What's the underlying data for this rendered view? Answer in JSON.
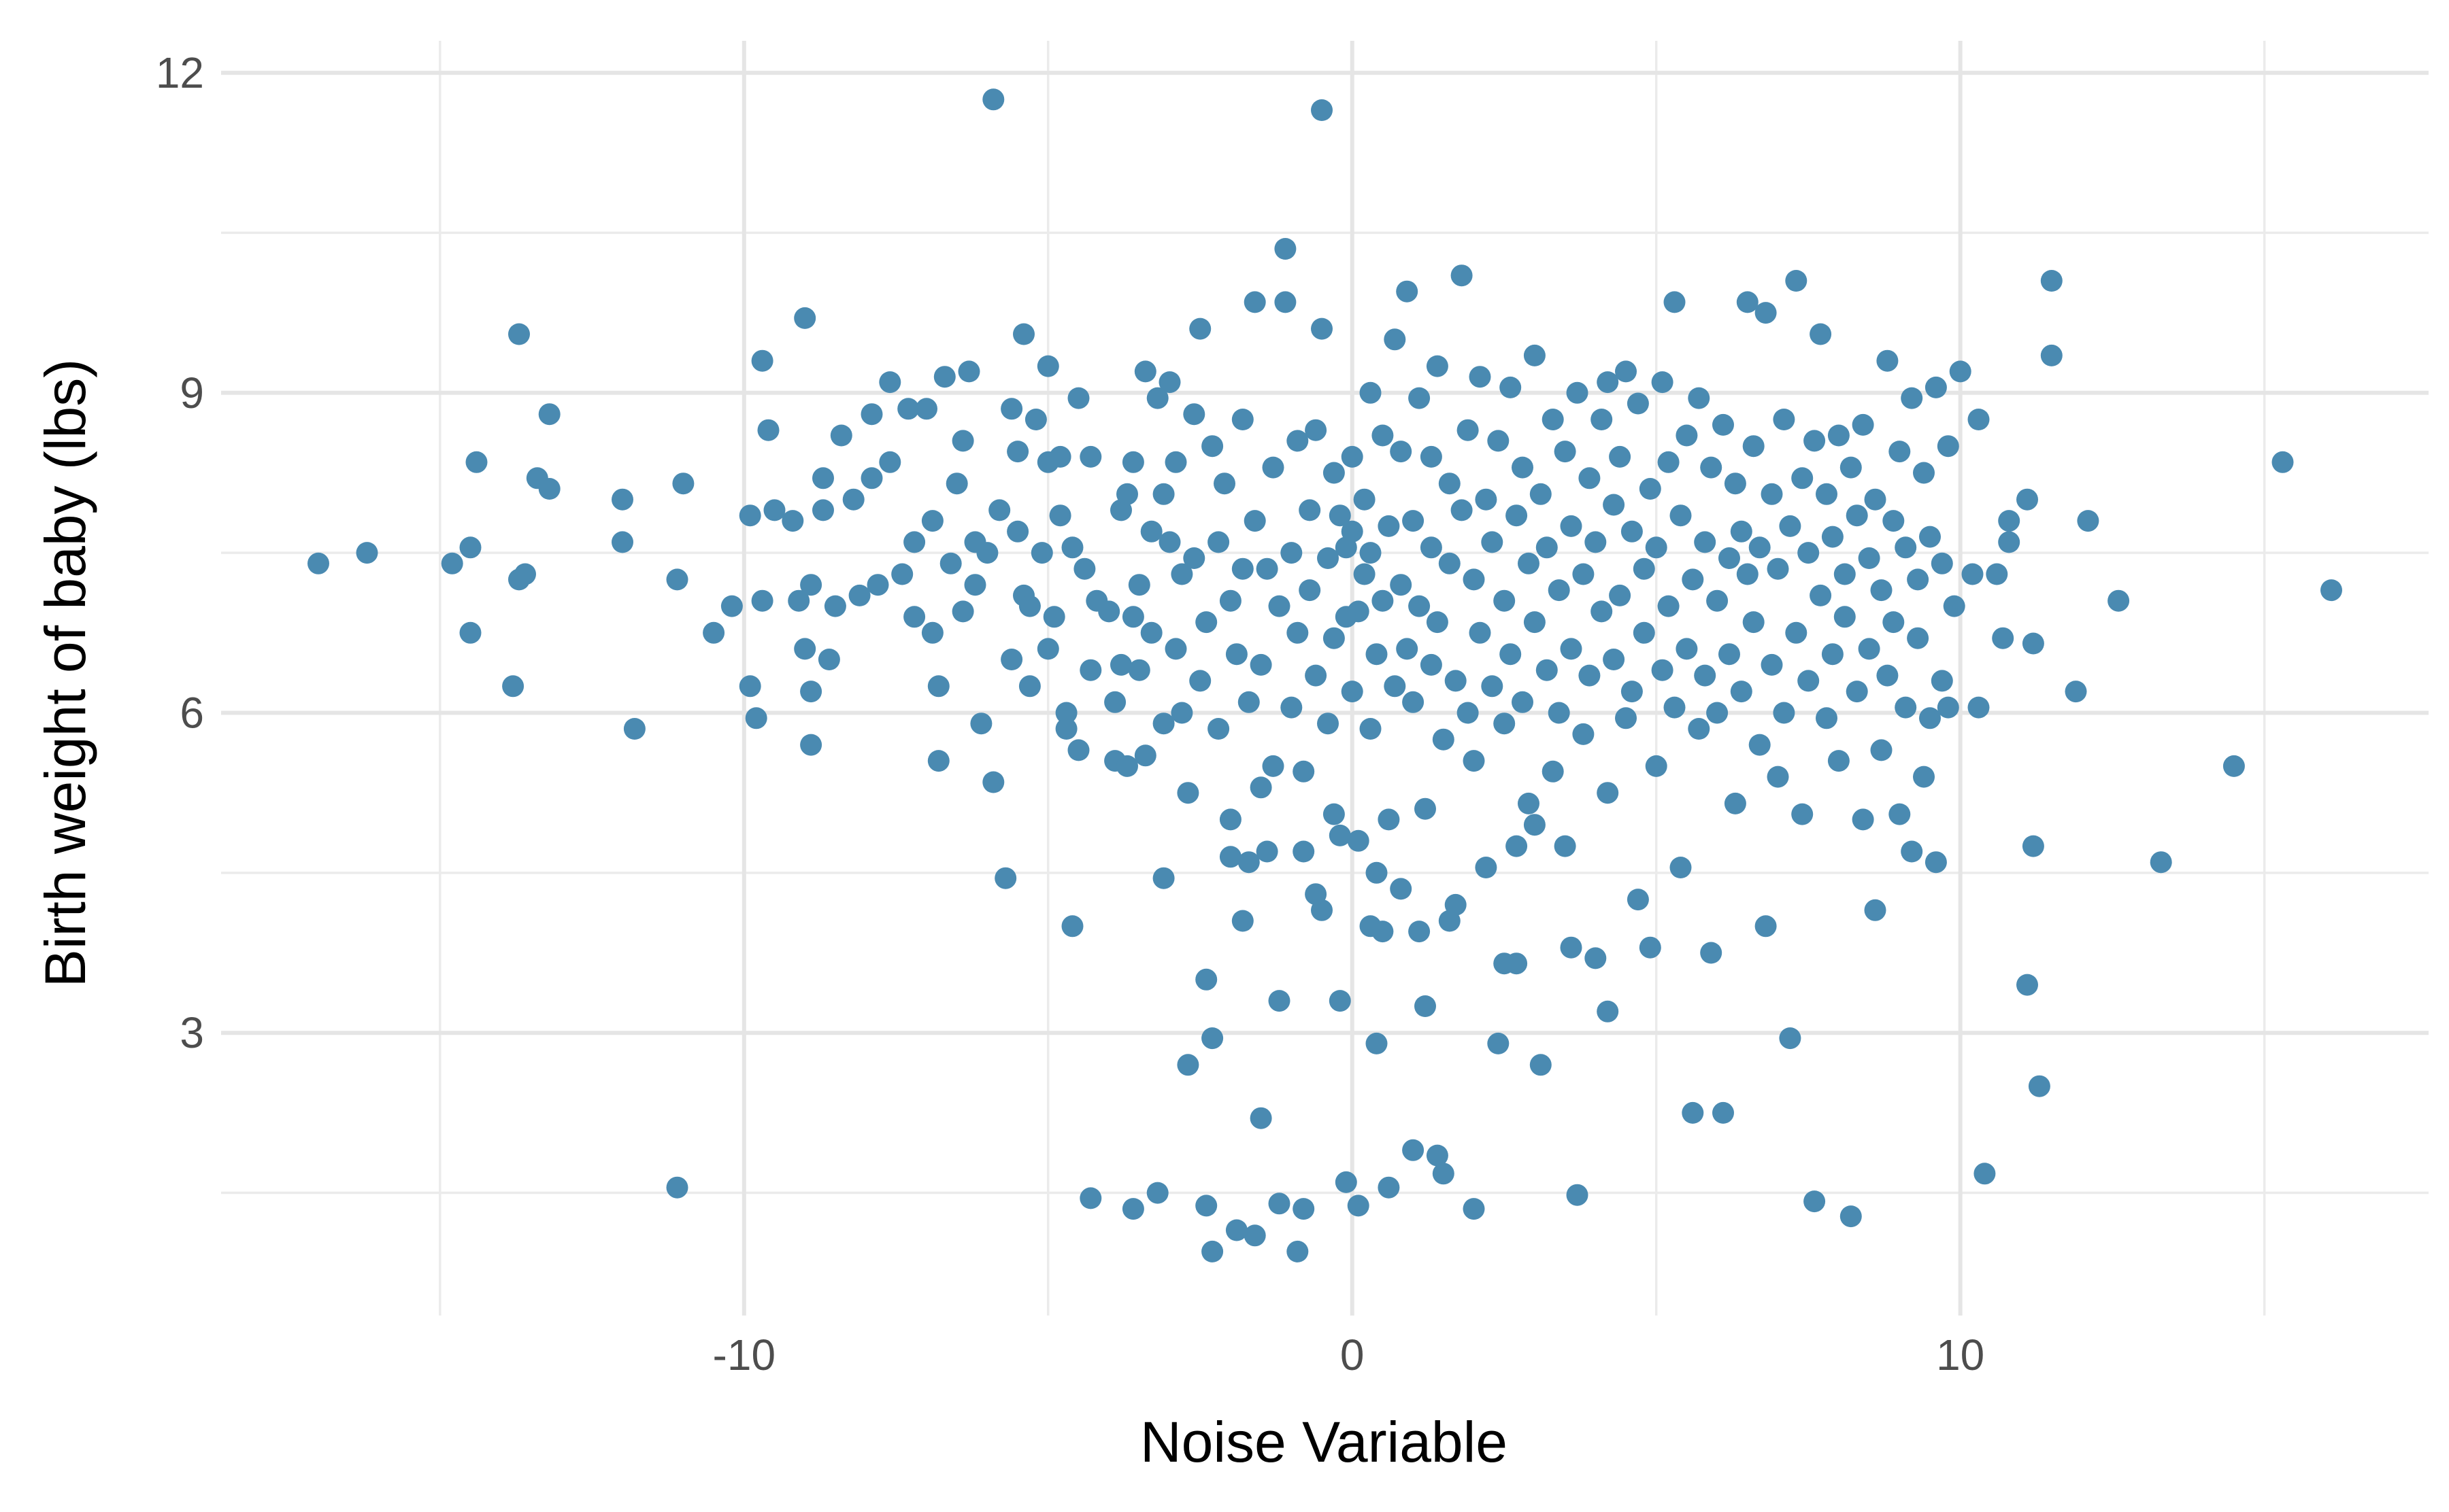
{
  "chart_data": {
    "type": "scatter",
    "title": "",
    "xlabel": "Noise Variable",
    "ylabel": "Birth weight of baby (lbs)",
    "xlim": [
      -18.6,
      17.7
    ],
    "ylim": [
      0.35,
      12.3
    ],
    "x_ticks": [
      -10,
      0,
      10
    ],
    "x_tick_labels": [
      "-10",
      "0",
      "10"
    ],
    "y_ticks": [
      3,
      6,
      9,
      12
    ],
    "y_tick_labels": [
      "3",
      "6",
      "9",
      "12"
    ],
    "grid": true,
    "point_color": "#4a8ab1",
    "points": [
      [
        -17.0,
        7.4
      ],
      [
        -16.2,
        7.5
      ],
      [
        -14.8,
        7.4
      ],
      [
        -14.5,
        7.55
      ],
      [
        -14.4,
        8.35
      ],
      [
        -14.5,
        6.75
      ],
      [
        -13.7,
        9.55
      ],
      [
        -13.6,
        7.3
      ],
      [
        -13.7,
        7.25
      ],
      [
        -13.4,
        8.2
      ],
      [
        -13.2,
        8.8
      ],
      [
        -13.2,
        8.1
      ],
      [
        -13.8,
        6.25
      ],
      [
        -12.0,
        8.0
      ],
      [
        -12.0,
        7.6
      ],
      [
        -11.8,
        5.85
      ],
      [
        -11.0,
        8.15
      ],
      [
        -11.1,
        7.25
      ],
      [
        -11.1,
        1.55
      ],
      [
        -10.5,
        6.75
      ],
      [
        -10.2,
        7.0
      ],
      [
        -9.9,
        7.85
      ],
      [
        -9.9,
        6.25
      ],
      [
        -9.8,
        5.95
      ],
      [
        -9.7,
        9.3
      ],
      [
        -9.7,
        7.05
      ],
      [
        -9.6,
        8.65
      ],
      [
        -9.5,
        7.9
      ],
      [
        -9.2,
        7.8
      ],
      [
        -9.1,
        7.05
      ],
      [
        -9.0,
        9.7
      ],
      [
        -9.0,
        6.6
      ],
      [
        -8.9,
        6.2
      ],
      [
        -8.9,
        5.7
      ],
      [
        -8.9,
        7.2
      ],
      [
        -8.7,
        7.9
      ],
      [
        -8.7,
        8.2
      ],
      [
        -8.6,
        6.5
      ],
      [
        -8.5,
        7.0
      ],
      [
        -8.4,
        8.6
      ],
      [
        -8.2,
        8.0
      ],
      [
        -8.1,
        7.1
      ],
      [
        -7.9,
        8.2
      ],
      [
        -7.9,
        8.8
      ],
      [
        -7.8,
        7.2
      ],
      [
        -7.6,
        8.35
      ],
      [
        -7.6,
        9.1
      ],
      [
        -7.4,
        7.3
      ],
      [
        -7.3,
        8.85
      ],
      [
        -7.2,
        7.6
      ],
      [
        -7.2,
        6.9
      ],
      [
        -7.0,
        8.85
      ],
      [
        -6.9,
        6.75
      ],
      [
        -6.9,
        7.8
      ],
      [
        -6.8,
        6.25
      ],
      [
        -6.8,
        5.55
      ],
      [
        -6.7,
        9.15
      ],
      [
        -6.6,
        7.4
      ],
      [
        -6.5,
        8.15
      ],
      [
        -6.4,
        8.55
      ],
      [
        -6.4,
        6.95
      ],
      [
        -6.3,
        9.2
      ],
      [
        -6.2,
        7.6
      ],
      [
        -6.1,
        5.9
      ],
      [
        -6.2,
        7.2
      ],
      [
        -6.0,
        7.5
      ],
      [
        -5.9,
        5.35
      ],
      [
        -5.8,
        7.9
      ],
      [
        -5.7,
        4.45
      ],
      [
        -5.6,
        8.85
      ],
      [
        -5.6,
        6.5
      ],
      [
        -5.5,
        7.7
      ],
      [
        -5.5,
        8.45
      ],
      [
        -5.4,
        9.55
      ],
      [
        -5.4,
        7.1
      ],
      [
        -5.3,
        7.0
      ],
      [
        -5.3,
        6.25
      ],
      [
        -5.2,
        8.75
      ],
      [
        -5.1,
        7.5
      ],
      [
        -5.0,
        8.35
      ],
      [
        -5.0,
        6.6
      ],
      [
        -5.0,
        9.25
      ],
      [
        -4.9,
        6.9
      ],
      [
        -4.8,
        7.85
      ],
      [
        -4.8,
        8.4
      ],
      [
        -4.7,
        6.0
      ],
      [
        -4.7,
        5.85
      ],
      [
        -4.6,
        4.0
      ],
      [
        -4.6,
        7.55
      ],
      [
        -4.5,
        8.95
      ],
      [
        -4.5,
        5.65
      ],
      [
        -4.4,
        7.35
      ],
      [
        -4.3,
        6.4
      ],
      [
        -4.3,
        8.4
      ],
      [
        -4.2,
        7.05
      ],
      [
        -4.0,
        6.95
      ],
      [
        -3.9,
        5.55
      ],
      [
        -3.9,
        6.1
      ],
      [
        -3.8,
        7.9
      ],
      [
        -3.8,
        6.45
      ],
      [
        -3.7,
        8.05
      ],
      [
        -3.7,
        5.5
      ],
      [
        -3.6,
        8.35
      ],
      [
        -3.6,
        6.9
      ],
      [
        -3.5,
        7.2
      ],
      [
        -3.5,
        6.4
      ],
      [
        -3.4,
        5.6
      ],
      [
        -3.4,
        9.2
      ],
      [
        -3.3,
        7.7
      ],
      [
        -3.3,
        6.75
      ],
      [
        -3.2,
        8.95
      ],
      [
        -3.2,
        1.5
      ],
      [
        -3.1,
        8.05
      ],
      [
        -3.1,
        5.9
      ],
      [
        -3.0,
        9.1
      ],
      [
        -3.0,
        7.6
      ],
      [
        -2.9,
        6.6
      ],
      [
        -2.9,
        8.35
      ],
      [
        -2.8,
        7.3
      ],
      [
        -2.8,
        6.0
      ],
      [
        -2.7,
        2.7
      ],
      [
        -2.7,
        5.25
      ],
      [
        -2.6,
        8.8
      ],
      [
        -2.6,
        7.45
      ],
      [
        -2.5,
        9.6
      ],
      [
        -2.5,
        6.3
      ],
      [
        -2.4,
        1.38
      ],
      [
        -2.4,
        6.85
      ],
      [
        -2.3,
        2.95
      ],
      [
        -2.3,
        8.5
      ],
      [
        -2.2,
        7.6
      ],
      [
        -2.2,
        5.85
      ],
      [
        -2.1,
        8.15
      ],
      [
        -2.0,
        4.65
      ],
      [
        -2.0,
        7.05
      ],
      [
        -1.9,
        6.55
      ],
      [
        -1.9,
        1.15
      ],
      [
        -1.8,
        8.75
      ],
      [
        -1.8,
        7.35
      ],
      [
        -1.7,
        4.6
      ],
      [
        -1.7,
        6.1
      ],
      [
        -1.6,
        9.85
      ],
      [
        -1.6,
        7.8
      ],
      [
        -1.5,
        6.45
      ],
      [
        -1.5,
        2.2
      ],
      [
        -1.4,
        7.35
      ],
      [
        -1.4,
        4.7
      ],
      [
        -1.3,
        8.3
      ],
      [
        -1.3,
        5.5
      ],
      [
        -1.2,
        7.0
      ],
      [
        -1.2,
        1.4
      ],
      [
        -1.1,
        10.35
      ],
      [
        -1.1,
        9.85
      ],
      [
        -1.0,
        7.5
      ],
      [
        -1.0,
        6.05
      ],
      [
        -0.9,
        8.55
      ],
      [
        -0.9,
        6.75
      ],
      [
        -0.9,
        0.95
      ],
      [
        -0.8,
        4.7
      ],
      [
        -0.8,
        5.45
      ],
      [
        -0.7,
        7.15
      ],
      [
        -0.7,
        7.9
      ],
      [
        -0.6,
        8.65
      ],
      [
        -0.6,
        6.35
      ],
      [
        -0.5,
        9.6
      ],
      [
        -0.5,
        4.15
      ],
      [
        -0.4,
        7.45
      ],
      [
        -0.4,
        5.9
      ],
      [
        -0.3,
        6.7
      ],
      [
        -0.3,
        8.25
      ],
      [
        -0.2,
        7.85
      ],
      [
        -0.2,
        3.3
      ],
      [
        -0.1,
        6.9
      ],
      [
        -0.1,
        1.6
      ],
      [
        -0.1,
        7.55
      ],
      [
        0.0,
        8.4
      ],
      [
        0.0,
        6.2
      ],
      [
        0.0,
        7.7
      ],
      [
        0.1,
        4.8
      ],
      [
        0.1,
        6.95
      ],
      [
        0.1,
        1.38
      ],
      [
        0.2,
        8.0
      ],
      [
        0.2,
        7.3
      ],
      [
        0.3,
        9.0
      ],
      [
        0.3,
        5.85
      ],
      [
        0.3,
        7.5
      ],
      [
        0.4,
        6.55
      ],
      [
        0.4,
        2.9
      ],
      [
        0.5,
        8.6
      ],
      [
        0.5,
        7.05
      ],
      [
        0.5,
        3.95
      ],
      [
        0.6,
        5.0
      ],
      [
        0.6,
        7.75
      ],
      [
        0.7,
        9.5
      ],
      [
        0.7,
        6.25
      ],
      [
        0.8,
        8.45
      ],
      [
        0.8,
        7.2
      ],
      [
        0.8,
        4.35
      ],
      [
        0.9,
        9.95
      ],
      [
        0.9,
        6.6
      ],
      [
        1.0,
        7.8
      ],
      [
        1.0,
        6.1
      ],
      [
        1.0,
        1.9
      ],
      [
        1.1,
        8.95
      ],
      [
        1.1,
        7.0
      ],
      [
        1.2,
        5.1
      ],
      [
        1.2,
        3.25
      ],
      [
        1.3,
        8.4
      ],
      [
        1.3,
        7.55
      ],
      [
        1.3,
        6.45
      ],
      [
        1.4,
        9.25
      ],
      [
        1.4,
        6.85
      ],
      [
        1.5,
        5.75
      ],
      [
        1.5,
        1.68
      ],
      [
        1.6,
        8.15
      ],
      [
        1.6,
        7.4
      ],
      [
        1.7,
        4.2
      ],
      [
        1.7,
        6.3
      ],
      [
        1.8,
        10.1
      ],
      [
        1.8,
        7.9
      ],
      [
        1.9,
        6.0
      ],
      [
        1.9,
        8.65
      ],
      [
        2.0,
        7.25
      ],
      [
        2.0,
        5.55
      ],
      [
        2.1,
        9.15
      ],
      [
        2.1,
        6.75
      ],
      [
        2.2,
        8.0
      ],
      [
        2.2,
        4.55
      ],
      [
        2.3,
        7.6
      ],
      [
        2.3,
        6.25
      ],
      [
        2.4,
        8.55
      ],
      [
        2.4,
        2.9
      ],
      [
        2.5,
        7.05
      ],
      [
        2.5,
        5.9
      ],
      [
        2.6,
        9.05
      ],
      [
        2.6,
        6.55
      ],
      [
        2.7,
        7.85
      ],
      [
        2.7,
        3.65
      ],
      [
        2.8,
        8.3
      ],
      [
        2.8,
        6.1
      ],
      [
        2.9,
        7.4
      ],
      [
        2.9,
        5.15
      ],
      [
        3.0,
        9.35
      ],
      [
        3.0,
        6.85
      ],
      [
        3.1,
        8.05
      ],
      [
        3.1,
        2.7
      ],
      [
        3.2,
        7.55
      ],
      [
        3.2,
        6.4
      ],
      [
        3.3,
        8.75
      ],
      [
        3.3,
        5.45
      ],
      [
        3.4,
        7.15
      ],
      [
        3.4,
        6.0
      ],
      [
        3.5,
        8.45
      ],
      [
        3.5,
        4.75
      ],
      [
        3.6,
        7.75
      ],
      [
        3.6,
        6.6
      ],
      [
        3.7,
        9.0
      ],
      [
        3.7,
        1.48
      ],
      [
        3.8,
        7.3
      ],
      [
        3.8,
        5.8
      ],
      [
        3.9,
        8.2
      ],
      [
        3.9,
        6.35
      ],
      [
        4.0,
        7.6
      ],
      [
        4.0,
        3.7
      ],
      [
        4.1,
        8.75
      ],
      [
        4.1,
        6.95
      ],
      [
        4.2,
        9.1
      ],
      [
        4.2,
        5.25
      ],
      [
        4.3,
        7.95
      ],
      [
        4.3,
        6.5
      ],
      [
        4.4,
        8.4
      ],
      [
        4.4,
        7.1
      ],
      [
        4.5,
        9.2
      ],
      [
        4.5,
        5.95
      ],
      [
        4.6,
        7.7
      ],
      [
        4.6,
        6.2
      ],
      [
        4.7,
        8.9
      ],
      [
        4.7,
        4.25
      ],
      [
        4.8,
        7.35
      ],
      [
        4.8,
        6.75
      ],
      [
        4.9,
        8.1
      ],
      [
        4.9,
        3.8
      ],
      [
        5.0,
        7.55
      ],
      [
        5.0,
        5.5
      ],
      [
        5.1,
        9.1
      ],
      [
        5.1,
        6.4
      ],
      [
        5.2,
        8.35
      ],
      [
        5.2,
        7.0
      ],
      [
        5.3,
        9.85
      ],
      [
        5.3,
        6.05
      ],
      [
        5.4,
        7.85
      ],
      [
        5.4,
        4.55
      ],
      [
        5.5,
        8.6
      ],
      [
        5.5,
        6.6
      ],
      [
        5.6,
        7.25
      ],
      [
        5.6,
        2.25
      ],
      [
        5.7,
        8.95
      ],
      [
        5.7,
        5.85
      ],
      [
        5.8,
        7.6
      ],
      [
        5.8,
        6.35
      ],
      [
        5.9,
        8.3
      ],
      [
        5.9,
        3.75
      ],
      [
        6.0,
        7.05
      ],
      [
        6.0,
        6.0
      ],
      [
        6.1,
        8.7
      ],
      [
        6.1,
        2.25
      ],
      [
        6.2,
        7.45
      ],
      [
        6.2,
        6.55
      ],
      [
        6.3,
        8.15
      ],
      [
        6.3,
        5.15
      ],
      [
        6.4,
        7.7
      ],
      [
        6.4,
        6.2
      ],
      [
        6.5,
        9.85
      ],
      [
        6.5,
        7.3
      ],
      [
        6.6,
        8.5
      ],
      [
        6.6,
        6.85
      ],
      [
        6.7,
        5.7
      ],
      [
        6.7,
        7.55
      ],
      [
        6.8,
        9.75
      ],
      [
        6.8,
        4.0
      ],
      [
        6.9,
        8.05
      ],
      [
        6.9,
        6.45
      ],
      [
        7.0,
        7.35
      ],
      [
        7.0,
        5.4
      ],
      [
        7.1,
        8.75
      ],
      [
        7.1,
        6.0
      ],
      [
        7.2,
        7.75
      ],
      [
        7.2,
        2.95
      ],
      [
        7.3,
        10.05
      ],
      [
        7.3,
        6.75
      ],
      [
        7.4,
        8.2
      ],
      [
        7.4,
        5.05
      ],
      [
        7.5,
        7.5
      ],
      [
        7.5,
        6.3
      ],
      [
        7.6,
        8.55
      ],
      [
        7.6,
        1.42
      ],
      [
        7.7,
        9.55
      ],
      [
        7.7,
        7.1
      ],
      [
        7.8,
        8.05
      ],
      [
        7.8,
        5.95
      ],
      [
        7.9,
        7.65
      ],
      [
        7.9,
        6.55
      ],
      [
        8.0,
        8.6
      ],
      [
        8.0,
        5.55
      ],
      [
        8.1,
        7.3
      ],
      [
        8.1,
        6.9
      ],
      [
        8.2,
        8.3
      ],
      [
        8.2,
        1.28
      ],
      [
        8.3,
        7.85
      ],
      [
        8.3,
        6.2
      ],
      [
        8.4,
        8.7
      ],
      [
        8.4,
        5.0
      ],
      [
        8.5,
        7.45
      ],
      [
        8.5,
        6.6
      ],
      [
        8.6,
        8.0
      ],
      [
        8.6,
        4.15
      ],
      [
        8.7,
        7.15
      ],
      [
        8.7,
        5.65
      ],
      [
        8.8,
        9.3
      ],
      [
        8.8,
        6.35
      ],
      [
        8.9,
        7.8
      ],
      [
        8.9,
        6.85
      ],
      [
        9.0,
        8.45
      ],
      [
        9.0,
        5.05
      ],
      [
        9.1,
        7.55
      ],
      [
        9.1,
        6.05
      ],
      [
        9.2,
        8.95
      ],
      [
        9.2,
        4.7
      ],
      [
        9.3,
        7.25
      ],
      [
        9.3,
        6.7
      ],
      [
        9.4,
        8.25
      ],
      [
        9.4,
        5.4
      ],
      [
        9.5,
        7.65
      ],
      [
        9.5,
        5.95
      ],
      [
        9.6,
        9.05
      ],
      [
        9.6,
        4.6
      ],
      [
        9.7,
        7.4
      ],
      [
        9.7,
        6.3
      ],
      [
        9.8,
        8.5
      ],
      [
        9.8,
        6.05
      ],
      [
        9.9,
        7.0
      ],
      [
        10.0,
        9.2
      ],
      [
        10.2,
        7.3
      ],
      [
        10.3,
        8.75
      ],
      [
        10.3,
        6.05
      ],
      [
        10.4,
        1.68
      ],
      [
        10.6,
        7.3
      ],
      [
        10.7,
        6.7
      ],
      [
        10.8,
        7.8
      ],
      [
        10.8,
        7.6
      ],
      [
        11.1,
        8.0
      ],
      [
        11.2,
        6.65
      ],
      [
        11.2,
        4.75
      ],
      [
        11.1,
        3.45
      ],
      [
        11.3,
        2.5
      ],
      [
        11.5,
        10.05
      ],
      [
        11.5,
        9.35
      ],
      [
        11.9,
        6.2
      ],
      [
        12.1,
        7.8
      ],
      [
        12.6,
        7.05
      ],
      [
        13.3,
        4.6
      ],
      [
        14.5,
        5.5
      ],
      [
        15.3,
        8.35
      ],
      [
        16.1,
        7.15
      ],
      [
        -5.9,
        11.75
      ],
      [
        -0.5,
        11.65
      ],
      [
        -4.3,
        1.45
      ],
      [
        -3.6,
        1.35
      ],
      [
        -2.3,
        0.95
      ],
      [
        -1.6,
        1.1
      ],
      [
        -0.8,
        1.35
      ],
      [
        0.6,
        1.55
      ],
      [
        1.4,
        1.85
      ],
      [
        2.0,
        1.35
      ],
      [
        -3.1,
        4.45
      ],
      [
        -2.4,
        3.5
      ],
      [
        -1.8,
        4.05
      ],
      [
        -1.2,
        3.3
      ],
      [
        -0.6,
        4.3
      ],
      [
        0.3,
        4.0
      ],
      [
        1.1,
        3.95
      ],
      [
        2.5,
        3.65
      ],
      [
        3.6,
        3.8
      ],
      [
        4.2,
        3.2
      ],
      [
        -0.3,
        5.05
      ],
      [
        -0.2,
        4.85
      ],
      [
        0.4,
        4.5
      ],
      [
        1.6,
        4.05
      ],
      [
        2.7,
        4.75
      ],
      [
        3.0,
        4.95
      ],
      [
        -1.5,
        5.3
      ],
      [
        -2.0,
        5.0
      ]
    ]
  }
}
